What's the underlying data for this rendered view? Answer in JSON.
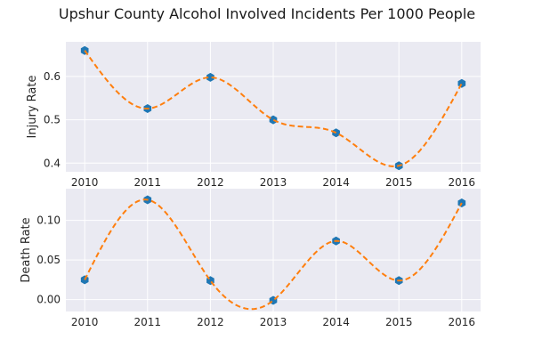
{
  "colors": {
    "panel": "#eaeaf2",
    "grid": "#ffffff",
    "marker": "#1f77b4",
    "curve": "#ff7f0e"
  },
  "chart_data": {
    "title": "Upshur County Alcohol Involved Incidents Per 1000 People",
    "charts": [
      {
        "type": "scatter",
        "overlay": "smooth dashed curve",
        "x": [
          2010,
          2011,
          2012,
          2013,
          2014,
          2015,
          2016
        ],
        "y": [
          0.66,
          0.526,
          0.598,
          0.5,
          0.47,
          0.394,
          0.584
        ],
        "xlabel": "",
        "ylabel": "Injury Rate",
        "xlim": [
          2009.7,
          2016.3
        ],
        "ylim": [
          0.38,
          0.68
        ],
        "xticks": [
          "2010",
          "2011",
          "2012",
          "2013",
          "2014",
          "2015",
          "2016"
        ],
        "yticks": [
          "0.4",
          "0.5",
          "0.6"
        ],
        "grid": true
      },
      {
        "type": "scatter",
        "overlay": "smooth dashed curve",
        "x": [
          2010,
          2011,
          2012,
          2013,
          2014,
          2015,
          2016
        ],
        "y": [
          0.025,
          0.126,
          0.024,
          -0.001,
          0.074,
          0.024,
          0.122
        ],
        "xlabel": "",
        "ylabel": "Death Rate",
        "xlim": [
          2009.7,
          2016.3
        ],
        "ylim": [
          -0.015,
          0.14
        ],
        "xticks": [
          "2010",
          "2011",
          "2012",
          "2013",
          "2014",
          "2015",
          "2016"
        ],
        "yticks": [
          "0.00",
          "0.05",
          "0.10"
        ],
        "grid": true
      }
    ]
  }
}
